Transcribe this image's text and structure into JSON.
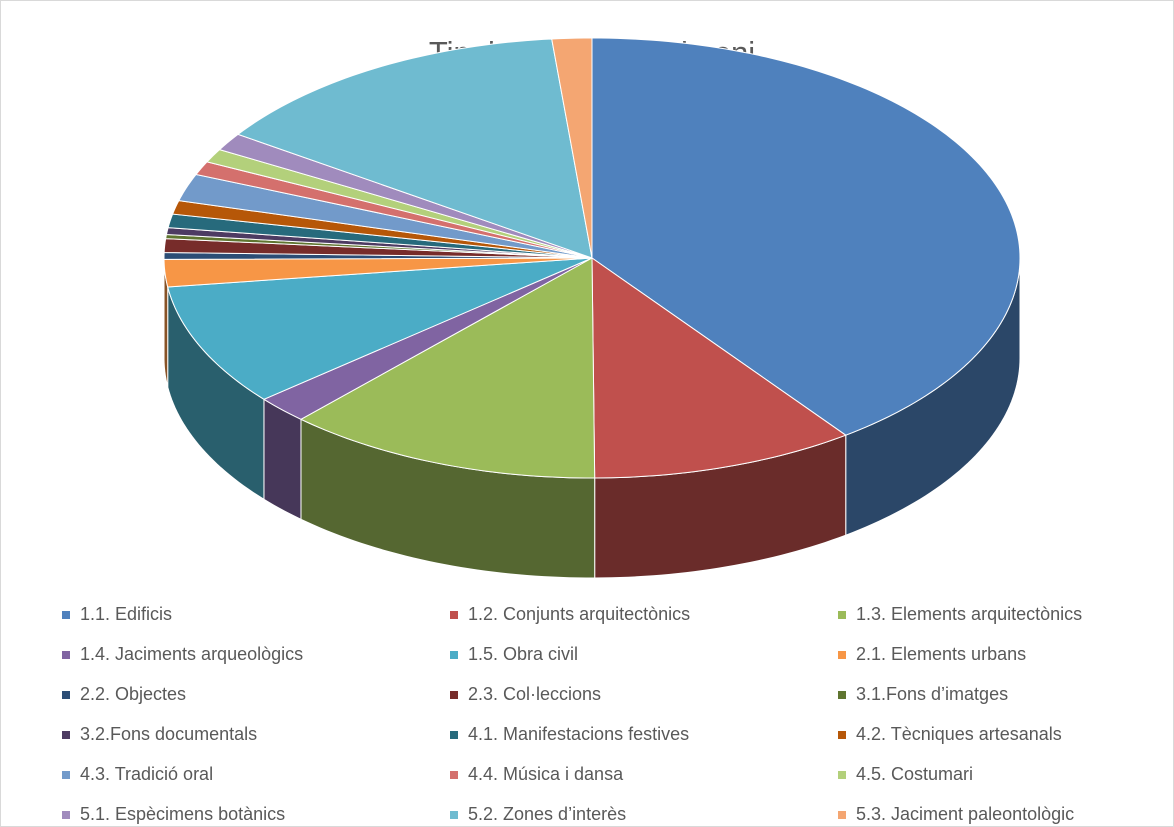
{
  "chart_data": {
    "type": "pie3d",
    "title": "Tipologies del patrimoni",
    "categories": [
      "1.1. Edificis",
      "1.2. Conjunts arquitectònics",
      "1.3. Elements arquitectònics",
      "1.4. Jaciments arqueològics",
      "1.5. Obra civil",
      "2.1. Elements urbans",
      "2.2. Objectes",
      "2.3. Col·leccions",
      "3.1.Fons d’imatges",
      "3.2.Fons documentals",
      "4.1. Manifestacions festives",
      "4.2. Tècniques artesanals",
      "4.3. Tradició oral",
      "4.4. Música i dansa",
      "4.5. Costumari",
      "5.1. Espècimens botànics",
      "5.2. Zones d’interès",
      "5.3. Jaciment paleontològic"
    ],
    "values": [
      39.9,
      10,
      12,
      2,
      9,
      2,
      0.5,
      1,
      0.3,
      0.5,
      1,
      1,
      2,
      1,
      1,
      1.3,
      14,
      1.5
    ],
    "colors": [
      "#4f81bd",
      "#c0504d",
      "#9bbb59",
      "#8064a2",
      "#4bacc6",
      "#f79646",
      "#2c4d75",
      "#772c2a",
      "#5f7530",
      "#4d3b62",
      "#276a7c",
      "#b65708",
      "#729aca",
      "#d4706d",
      "#b3d07b",
      "#a08bbd",
      "#6fbbd0",
      "#f4a672"
    ]
  }
}
